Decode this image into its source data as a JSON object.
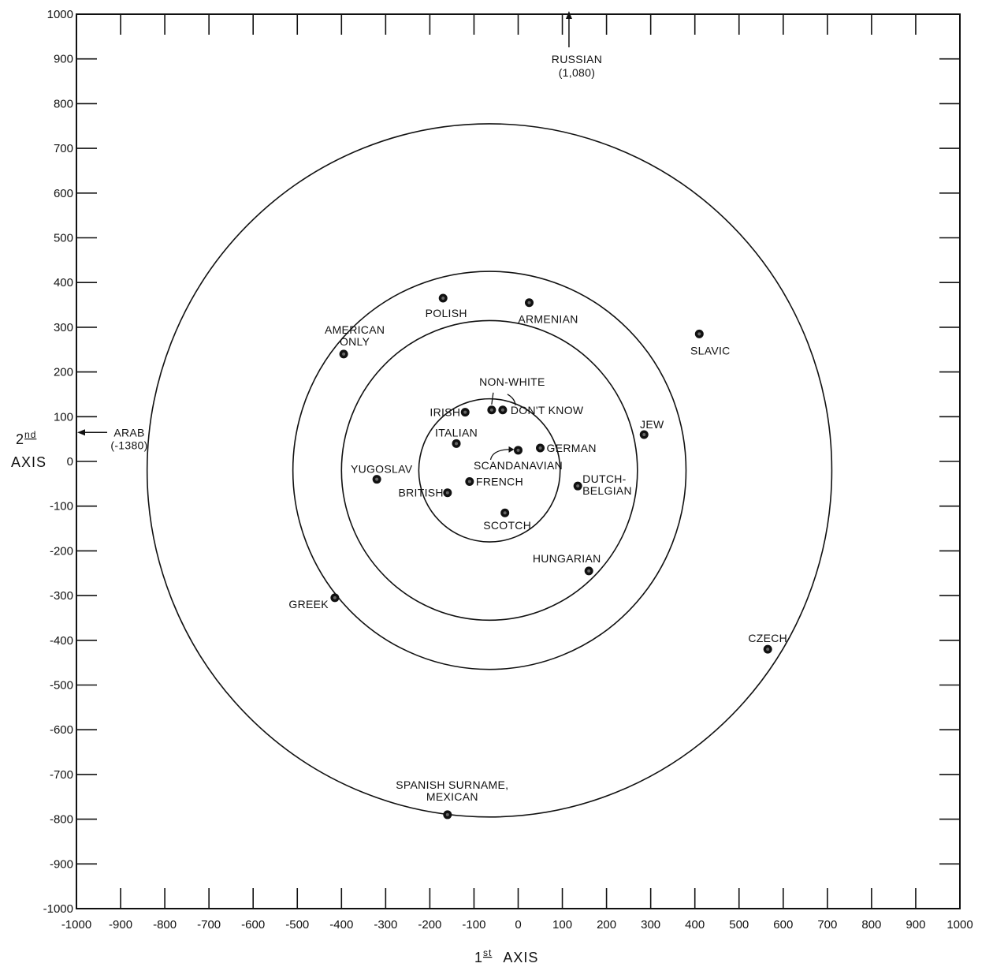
{
  "chart_data": {
    "type": "scatter",
    "title": "",
    "xlabel": {
      "main": "1",
      "sup": "st",
      "rest": "AXIS"
    },
    "ylabel": {
      "main": "2",
      "sup": "nd",
      "rest": "AXIS"
    },
    "xlim": [
      -1000,
      1000
    ],
    "ylim": [
      -1000,
      1000
    ],
    "x_ticks": [
      "-1000",
      "-900",
      "-800",
      "-700",
      "-600",
      "-500",
      "-400",
      "-300",
      "-200",
      "-100",
      "0",
      "100",
      "200",
      "300",
      "400",
      "500",
      "600",
      "700",
      "800",
      "900",
      "1000"
    ],
    "y_ticks": [
      "1000",
      "900",
      "800",
      "700",
      "600",
      "500",
      "400",
      "300",
      "200",
      "100",
      "0",
      "-100",
      "-200",
      "-300",
      "-400",
      "-500",
      "-600",
      "-700",
      "-800",
      "-900",
      "-1000"
    ],
    "grid": false,
    "points": [
      {
        "label": [
          "POLISH"
        ],
        "x": -170,
        "y": 365
      },
      {
        "label": [
          "ARMENIAN"
        ],
        "x": 25,
        "y": 355
      },
      {
        "label": [
          "AMERICAN",
          "ONLY"
        ],
        "x": -395,
        "y": 240
      },
      {
        "label": [
          "SLAVIC"
        ],
        "x": 410,
        "y": 285
      },
      {
        "label": [
          "NON-WHITE"
        ],
        "x": -60,
        "y": 115
      },
      {
        "label": [
          "DON'T KNOW"
        ],
        "x": -35,
        "y": 115
      },
      {
        "label": [
          "IRISH"
        ],
        "x": -120,
        "y": 110
      },
      {
        "label": [
          "JEW"
        ],
        "x": 285,
        "y": 60
      },
      {
        "label": [
          "ITALIAN"
        ],
        "x": -140,
        "y": 40
      },
      {
        "label": [
          "GERMAN"
        ],
        "x": 50,
        "y": 30
      },
      {
        "label": [
          "SCANDANAVIAN"
        ],
        "x": 0,
        "y": 25
      },
      {
        "label": [
          "YUGOSLAV"
        ],
        "x": -320,
        "y": -40
      },
      {
        "label": [
          "FRENCH"
        ],
        "x": -110,
        "y": -45
      },
      {
        "label": [
          "DUTCH-",
          "BELGIAN"
        ],
        "x": 135,
        "y": -55
      },
      {
        "label": [
          "BRITISH"
        ],
        "x": -160,
        "y": -70
      },
      {
        "label": [
          "SCOTCH"
        ],
        "x": -30,
        "y": -115
      },
      {
        "label": [
          "HUNGARIAN"
        ],
        "x": 160,
        "y": -245
      },
      {
        "label": [
          "GREEK"
        ],
        "x": -415,
        "y": -305
      },
      {
        "label": [
          "CZECH"
        ],
        "x": 565,
        "y": -420
      },
      {
        "label": [
          "SPANISH SURNAME,",
          "MEXICAN"
        ],
        "x": -160,
        "y": -790
      }
    ],
    "offscale": [
      {
        "label": [
          "RUSSIAN",
          "(1,080)"
        ],
        "direction": "up",
        "x": 115,
        "y": 1080
      },
      {
        "label": [
          "ARAB",
          "(-1380)"
        ],
        "direction": "left",
        "x": -1380,
        "y": 100
      }
    ],
    "circles": [
      {
        "cx": -65,
        "cy": -20,
        "r": 160
      },
      {
        "cx": -65,
        "cy": -20,
        "r": 335
      },
      {
        "cx": -65,
        "cy": -20,
        "r": 445
      },
      {
        "cx": -65,
        "cy": -20,
        "r": 775
      }
    ]
  }
}
